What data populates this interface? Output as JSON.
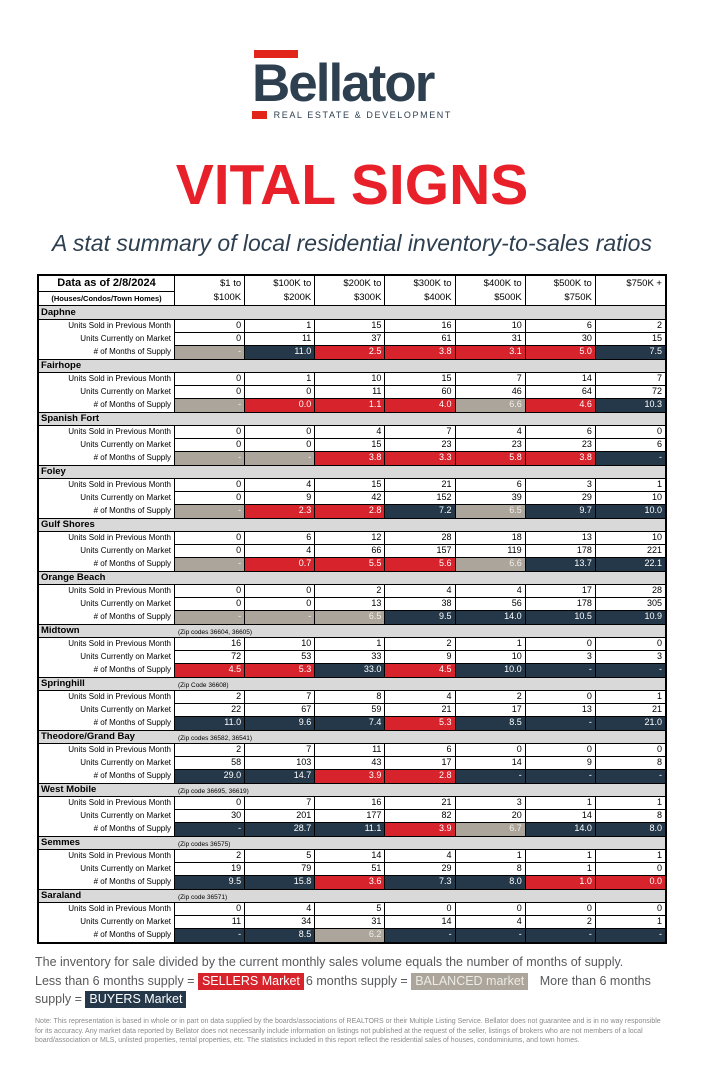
{
  "logo": {
    "brand": "Bellator",
    "tagline": "REAL ESTATE & DEVELOPMENT",
    "accent_color": "#E1251B",
    "navy_color": "#2E3F50"
  },
  "title": "VITAL SIGNS",
  "subtitle": "A stat summary of local residential inventory-to-sales ratios",
  "colors": {
    "title_red": "#E8202A",
    "sellers_red": "#D7232B",
    "balanced_gray": "#ACA59B",
    "buyers_navy": "#24384A",
    "region_header_bg": "#D9D9D9"
  },
  "table": {
    "corner_title": "Data as of 2/8/2024",
    "corner_subtitle": "(Houses/Condos/Town Homes)",
    "columns": [
      {
        "line1": "$1 to",
        "line2": "$100K"
      },
      {
        "line1": "$100K to",
        "line2": "$200K"
      },
      {
        "line1": "$200K to",
        "line2": "$300K"
      },
      {
        "line1": "$300K to",
        "line2": "$400K"
      },
      {
        "line1": "$400K to",
        "line2": "$500K"
      },
      {
        "line1": "$500K to",
        "line2": "$750K"
      },
      {
        "line1": "$750K +",
        "line2": ""
      }
    ],
    "row_labels": {
      "sold": "Units Sold in Previous Month",
      "market": "Units Currently on Market",
      "supply": "# of Months of Supply"
    },
    "regions": [
      {
        "name": "Daphne",
        "zips": "",
        "sold": [
          "0",
          "1",
          "15",
          "16",
          "10",
          "6",
          "2"
        ],
        "market": [
          "0",
          "11",
          "37",
          "61",
          "31",
          "30",
          "15"
        ],
        "supply": [
          "-",
          "11.0",
          "2.5",
          "3.8",
          "3.1",
          "5.0",
          "7.5"
        ],
        "supply_status": [
          "balanced",
          "buyers",
          "sellers",
          "sellers",
          "sellers",
          "sellers",
          "buyers"
        ]
      },
      {
        "name": "Fairhope",
        "zips": "",
        "sold": [
          "0",
          "1",
          "10",
          "15",
          "7",
          "14",
          "7"
        ],
        "market": [
          "0",
          "0",
          "11",
          "60",
          "46",
          "64",
          "72"
        ],
        "supply": [
          "-",
          "0.0",
          "1.1",
          "4.0",
          "6.6",
          "4.6",
          "10.3"
        ],
        "supply_status": [
          "balanced",
          "sellers",
          "sellers",
          "sellers",
          "balanced",
          "sellers",
          "buyers"
        ]
      },
      {
        "name": "Spanish Fort",
        "zips": "",
        "sold": [
          "0",
          "0",
          "4",
          "7",
          "4",
          "6",
          "0"
        ],
        "market": [
          "0",
          "0",
          "15",
          "23",
          "23",
          "23",
          "6"
        ],
        "supply": [
          "-",
          "-",
          "3.8",
          "3.3",
          "5.8",
          "3.8",
          "-"
        ],
        "supply_status": [
          "balanced",
          "balanced",
          "sellers",
          "sellers",
          "sellers",
          "sellers",
          "buyers"
        ]
      },
      {
        "name": "Foley",
        "zips": "",
        "sold": [
          "0",
          "4",
          "15",
          "21",
          "6",
          "3",
          "1"
        ],
        "market": [
          "0",
          "9",
          "42",
          "152",
          "39",
          "29",
          "10"
        ],
        "supply": [
          "-",
          "2.3",
          "2.8",
          "7.2",
          "6.5",
          "9.7",
          "10.0"
        ],
        "supply_status": [
          "balanced",
          "sellers",
          "sellers",
          "buyers",
          "balanced",
          "buyers",
          "buyers"
        ]
      },
      {
        "name": "Gulf Shores",
        "zips": "",
        "sold": [
          "0",
          "6",
          "12",
          "28",
          "18",
          "13",
          "10"
        ],
        "market": [
          "0",
          "4",
          "66",
          "157",
          "119",
          "178",
          "221"
        ],
        "supply": [
          "-",
          "0.7",
          "5.5",
          "5.6",
          "6.6",
          "13.7",
          "22.1"
        ],
        "supply_status": [
          "balanced",
          "sellers",
          "sellers",
          "sellers",
          "balanced",
          "buyers",
          "buyers"
        ]
      },
      {
        "name": "Orange Beach",
        "zips": "",
        "sold": [
          "0",
          "0",
          "2",
          "4",
          "4",
          "17",
          "28"
        ],
        "market": [
          "0",
          "0",
          "13",
          "38",
          "56",
          "178",
          "305"
        ],
        "supply": [
          "-",
          "-",
          "6.5",
          "9.5",
          "14.0",
          "10.5",
          "10.9"
        ],
        "supply_status": [
          "balanced",
          "balanced",
          "balanced",
          "buyers",
          "buyers",
          "buyers",
          "buyers"
        ]
      },
      {
        "name": "Midtown",
        "zips": "(Zip codes 36604, 36605)",
        "sold": [
          "16",
          "10",
          "1",
          "2",
          "1",
          "0",
          "0"
        ],
        "market": [
          "72",
          "53",
          "33",
          "9",
          "10",
          "3",
          "3"
        ],
        "supply": [
          "4.5",
          "5.3",
          "33.0",
          "4.5",
          "10.0",
          "-",
          "-"
        ],
        "supply_status": [
          "sellers",
          "sellers",
          "buyers",
          "sellers",
          "buyers",
          "buyers",
          "buyers"
        ]
      },
      {
        "name": "Springhill",
        "zips": "(Zip Code 36608)",
        "sold": [
          "2",
          "7",
          "8",
          "4",
          "2",
          "0",
          "1"
        ],
        "market": [
          "22",
          "67",
          "59",
          "21",
          "17",
          "13",
          "21"
        ],
        "supply": [
          "11.0",
          "9.6",
          "7.4",
          "5.3",
          "8.5",
          "-",
          "21.0"
        ],
        "supply_status": [
          "buyers",
          "buyers",
          "buyers",
          "sellers",
          "buyers",
          "buyers",
          "buyers"
        ]
      },
      {
        "name": "Theodore/Grand Bay",
        "zips": "(Zip codes 36582, 36541)",
        "sold": [
          "2",
          "7",
          "11",
          "6",
          "0",
          "0",
          "0"
        ],
        "market": [
          "58",
          "103",
          "43",
          "17",
          "14",
          "9",
          "8"
        ],
        "supply": [
          "29.0",
          "14.7",
          "3.9",
          "2.8",
          "-",
          "-",
          "-"
        ],
        "supply_status": [
          "buyers",
          "buyers",
          "sellers",
          "sellers",
          "buyers",
          "buyers",
          "buyers"
        ]
      },
      {
        "name": "West Mobile",
        "zips": "(Zip code 36695, 36619)",
        "sold": [
          "0",
          "7",
          "16",
          "21",
          "3",
          "1",
          "1"
        ],
        "market": [
          "30",
          "201",
          "177",
          "82",
          "20",
          "14",
          "8"
        ],
        "supply": [
          "-",
          "28.7",
          "11.1",
          "3.9",
          "6.7",
          "14.0",
          "8.0"
        ],
        "supply_status": [
          "buyers",
          "buyers",
          "buyers",
          "sellers",
          "balanced",
          "buyers",
          "buyers"
        ]
      },
      {
        "name": "Semmes",
        "zips": "(Zip codes 36575)",
        "sold": [
          "2",
          "5",
          "14",
          "4",
          "1",
          "1",
          "1"
        ],
        "market": [
          "19",
          "79",
          "51",
          "29",
          "8",
          "1",
          "0"
        ],
        "supply": [
          "9.5",
          "15.8",
          "3.6",
          "7.3",
          "8.0",
          "1.0",
          "0.0"
        ],
        "supply_status": [
          "buyers",
          "buyers",
          "sellers",
          "buyers",
          "buyers",
          "sellers",
          "sellers"
        ]
      },
      {
        "name": "Saraland",
        "zips": "(Zip code 36571)",
        "sold": [
          "0",
          "4",
          "5",
          "0",
          "0",
          "0",
          "0"
        ],
        "market": [
          "11",
          "34",
          "31",
          "14",
          "4",
          "2",
          "1"
        ],
        "supply": [
          "-",
          "8.5",
          "6.2",
          "-",
          "-",
          "-",
          "-"
        ],
        "supply_status": [
          "buyers",
          "buyers",
          "balanced",
          "buyers",
          "buyers",
          "buyers",
          "buyers"
        ]
      }
    ]
  },
  "legend": {
    "explanation": "The inventory for sale divided by the current monthly sales volume equals the number of months of supply.",
    "sellers_prefix": "Less than 6 months supply = ",
    "sellers_chip": "SELLERS Market",
    "balanced_prefix": "6 months supply = ",
    "balanced_chip": "BALANCED market",
    "buyers_prefix": " More than 6 months supply = ",
    "buyers_chip": "BUYERS Market"
  },
  "note": "Note: This representation is based in whole or in part on data supplied by the boards/associations of REALTORS or their Multiple Listing Service. Bellator does not guarantee and is in no way responsible for its accuracy. Any market data reported by Bellator does not necessarily include information on listings not published at the request of the seller, listings of brokers who are not members of a local board/association or MLS, unlisted properties, rental properties, etc. The statistics included in this report reflect the residential sales of houses, condominiums, and town homes."
}
